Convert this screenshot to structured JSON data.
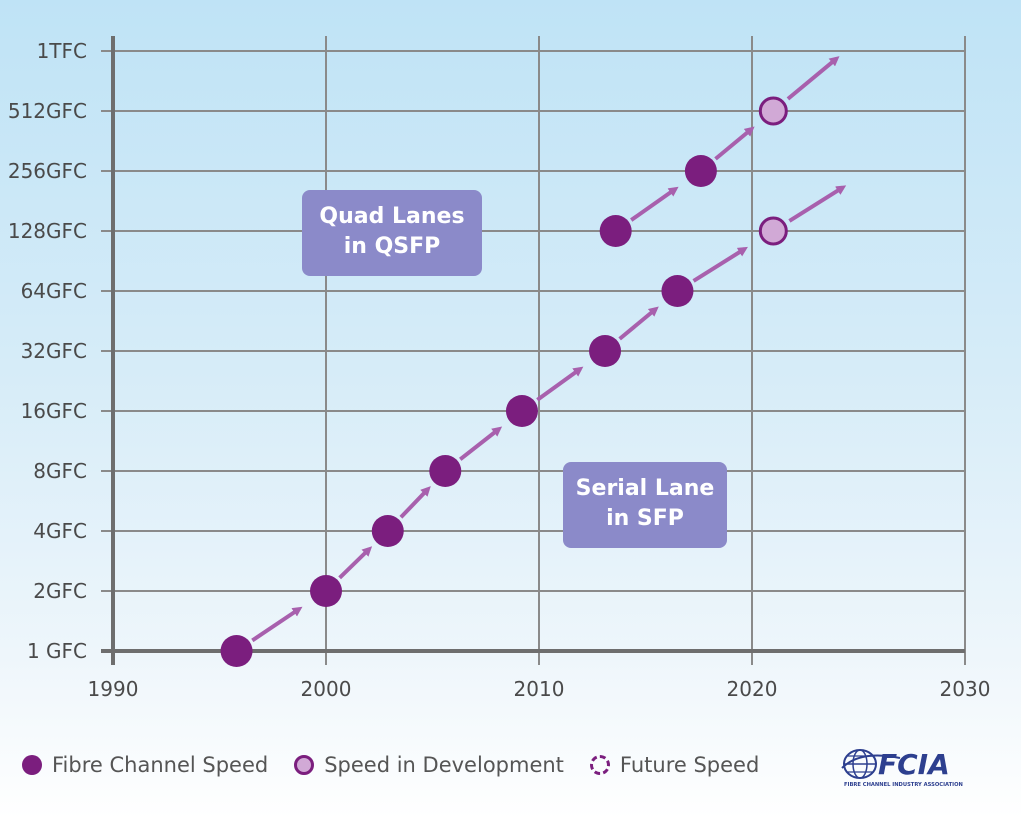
{
  "chart_data": {
    "type": "scatter",
    "x_ticks": [
      "1990",
      "2000",
      "2010",
      "2020",
      "2030"
    ],
    "y_ticks": [
      "1 GFC",
      "2GFC",
      "4GFC",
      "8GFC",
      "16GFC",
      "32GFC",
      "64GFC",
      "128GFC",
      "256GFC",
      "512GFC",
      "1TFC"
    ],
    "xlim": [
      1990,
      2030
    ],
    "y_scale": "log2 speed levels",
    "grid": true,
    "series": [
      {
        "name": "Serial Lane in SFP",
        "points": [
          {
            "x": 1995.8,
            "y": "1 GFC",
            "status": "Fibre Channel Speed"
          },
          {
            "x": 2000.0,
            "y": "2GFC",
            "status": "Fibre Channel Speed"
          },
          {
            "x": 2002.9,
            "y": "4GFC",
            "status": "Fibre Channel Speed"
          },
          {
            "x": 2005.6,
            "y": "8GFC",
            "status": "Fibre Channel Speed"
          },
          {
            "x": 2009.2,
            "y": "16GFC",
            "status": "Fibre Channel Speed"
          },
          {
            "x": 2013.1,
            "y": "32GFC",
            "status": "Fibre Channel Speed"
          },
          {
            "x": 2016.5,
            "y": "64GFC",
            "status": "Fibre Channel Speed"
          },
          {
            "x": 2021.0,
            "y": "128GFC",
            "status": "Speed in Development"
          }
        ]
      },
      {
        "name": "Quad Lanes in QSFP",
        "points": [
          {
            "x": 2013.6,
            "y": "128GFC",
            "status": "Fibre Channel Speed"
          },
          {
            "x": 2017.6,
            "y": "256GFC",
            "status": "Fibre Channel Speed"
          },
          {
            "x": 2021.0,
            "y": "512GFC",
            "status": "Speed in Development"
          }
        ]
      }
    ],
    "annotations": {
      "quad": {
        "line1": "Quad Lanes",
        "line2": "in QSFP"
      },
      "serial": {
        "line1": "Serial Lane",
        "line2": "in SFP"
      }
    },
    "legend": {
      "placement": "bottom",
      "items": [
        "Fibre Channel Speed",
        "Speed in Development",
        "Future Speed"
      ]
    },
    "colors": {
      "dot": "#7b1e7e",
      "dev_fill": "#d1a9d6",
      "arrow": "#a860ad",
      "grid": "#8a8a8a",
      "callout": "#8b8ac9"
    }
  },
  "logo": {
    "icon": "globe-icon",
    "wordmark": "FCIA",
    "tagline": "FIBRE CHANNEL INDUSTRY ASSOCIATION"
  }
}
